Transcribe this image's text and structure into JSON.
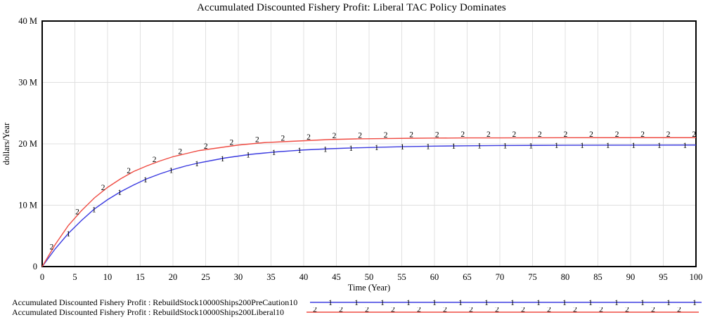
{
  "chart_data": {
    "type": "line",
    "title": "Accumulated Discounted Fishery Profit: Liberal TAC Policy Dominates",
    "xlabel": "Time (Year)",
    "ylabel": "dollars/Year",
    "xlim": [
      0,
      100
    ],
    "ylim_millions": [
      0,
      40
    ],
    "grid": true,
    "legend_position": "bottom",
    "x_ticks": [
      0,
      5,
      10,
      15,
      20,
      25,
      30,
      35,
      40,
      45,
      50,
      55,
      60,
      65,
      70,
      75,
      80,
      85,
      90,
      95,
      100
    ],
    "y_ticks": [
      {
        "label": "40 M",
        "value": 40
      },
      {
        "label": "30 M",
        "value": 30
      },
      {
        "label": "20 M",
        "value": 20
      },
      {
        "label": "10 M",
        "value": 10
      },
      {
        "label": "0",
        "value": 0
      }
    ],
    "x": [
      0,
      2,
      4,
      6,
      8,
      10,
      12,
      14,
      16,
      18,
      20,
      22,
      24,
      26,
      28,
      30,
      32,
      34,
      36,
      38,
      40,
      44,
      48,
      52,
      56,
      60,
      65,
      70,
      80,
      90,
      100
    ],
    "marker_interval_years": 3.93,
    "series": [
      {
        "name": "RebuildStock10000Ships200PreCaution10",
        "legend_label": "Accumulated Discounted Fishery Profit : RebuildStock10000Ships200PreCaution10",
        "marker": "1",
        "color": "#3a3ae0",
        "marker_start_year": 4.0,
        "values_millions": [
          0,
          2.9,
          5.4,
          7.5,
          9.4,
          10.9,
          12.2,
          13.3,
          14.3,
          15.1,
          15.8,
          16.4,
          16.9,
          17.3,
          17.7,
          18.0,
          18.3,
          18.5,
          18.7,
          18.85,
          19.0,
          19.2,
          19.35,
          19.45,
          19.55,
          19.62,
          19.68,
          19.72,
          19.76,
          19.78,
          19.8
        ],
        "final_value_millions": 19.8
      },
      {
        "name": "RebuildStock10000Ships200Liberal10",
        "legend_label": "Accumulated Discounted Fishery Profit : RebuildStock10000Ships200Liberal10",
        "marker": "2",
        "color": "#ef4b42",
        "marker_start_year": 1.45,
        "values_millions": [
          0,
          3.6,
          6.7,
          9.1,
          11.2,
          12.9,
          14.3,
          15.5,
          16.4,
          17.2,
          17.9,
          18.4,
          18.9,
          19.2,
          19.5,
          19.8,
          20.0,
          20.2,
          20.3,
          20.4,
          20.5,
          20.7,
          20.8,
          20.85,
          20.9,
          20.93,
          20.96,
          20.97,
          20.99,
          21.0,
          21.0
        ],
        "final_value_millions": 21.0
      }
    ],
    "colors": {
      "grid": "#e0e0e0",
      "border": "#000000",
      "background": "#ffffff",
      "text": "#000000"
    }
  }
}
